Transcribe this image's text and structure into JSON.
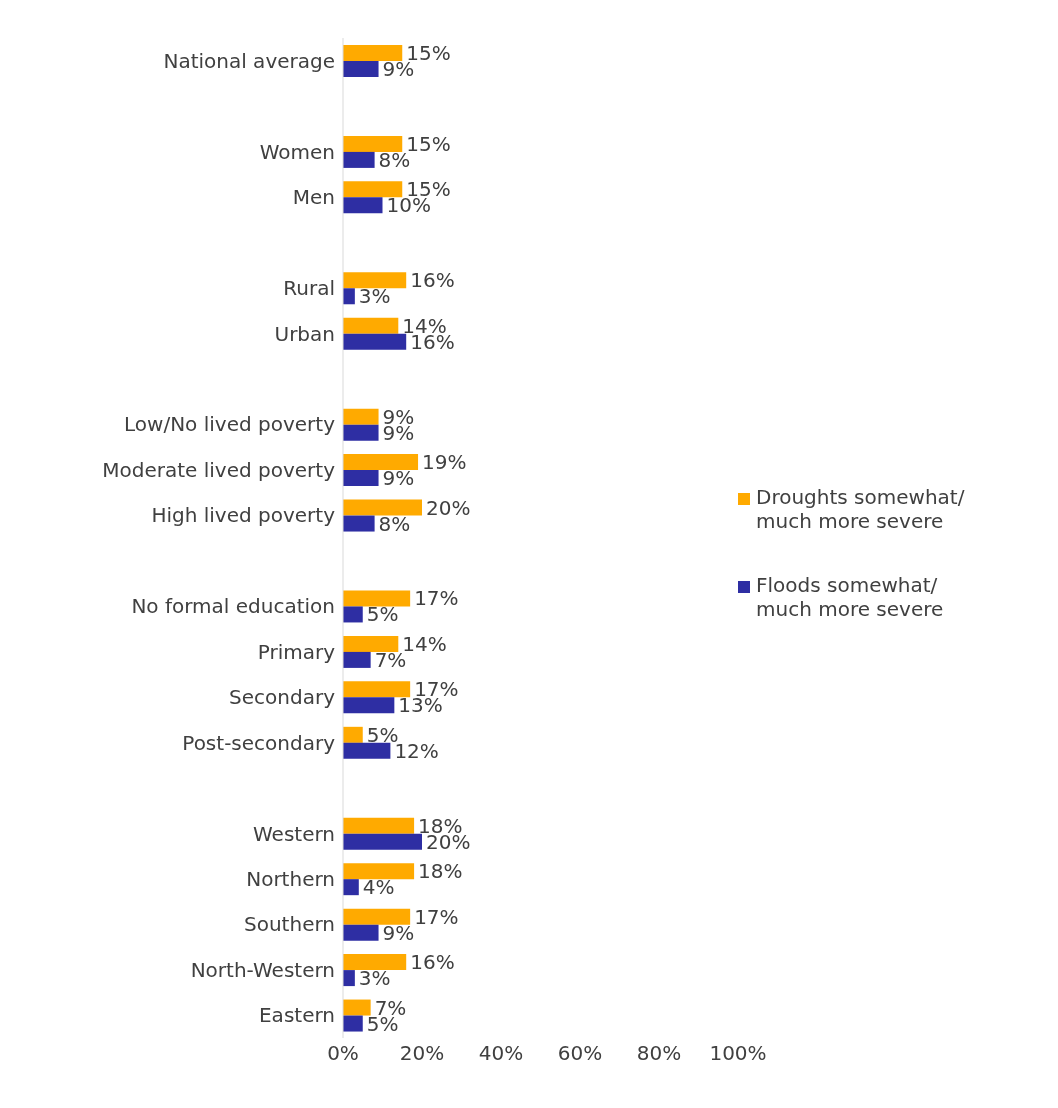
{
  "chart_data": {
    "type": "bar",
    "orientation": "horizontal",
    "categories": [
      "National average",
      null,
      "Women",
      "Men",
      null,
      "Rural",
      "Urban",
      null,
      "Low/No lived poverty",
      "Moderate lived poverty",
      "High lived poverty",
      null,
      "No formal education",
      "Primary",
      "Secondary",
      "Post-secondary",
      null,
      "Western",
      "Northern",
      "Southern",
      "North-Western",
      "Eastern"
    ],
    "series": [
      {
        "name": "Droughts somewhat/ much more severe",
        "color": "#ffaa00",
        "values": [
          15,
          null,
          15,
          15,
          null,
          16,
          14,
          null,
          9,
          19,
          20,
          null,
          17,
          14,
          17,
          5,
          null,
          18,
          18,
          17,
          16,
          7
        ],
        "value_labels": [
          "15%",
          null,
          "15%",
          "15%",
          null,
          "16%",
          "14%",
          null,
          "9%",
          "19%",
          "20%",
          null,
          "17%",
          "14%",
          "17%",
          "5%",
          null,
          "18%",
          "18%",
          "17%",
          "16%",
          "7%"
        ]
      },
      {
        "name": "Floods somewhat/ much more severe",
        "color": "#2e2ea3",
        "values": [
          9,
          null,
          8,
          10,
          null,
          3,
          16,
          null,
          9,
          9,
          8,
          null,
          5,
          7,
          13,
          12,
          null,
          20,
          4,
          9,
          3,
          5
        ],
        "value_labels": [
          "9%",
          null,
          "8%",
          "10%",
          null,
          "3%",
          "16%",
          null,
          "9%",
          "9%",
          "8%",
          null,
          "5%",
          "7%",
          "13%",
          "12%",
          null,
          "20%",
          "4%",
          "9%",
          "3%",
          "5%"
        ]
      }
    ],
    "xlim": [
      0,
      100
    ],
    "xticks": [
      {
        "value": 0,
        "label": "0%"
      },
      {
        "value": 20,
        "label": "20%"
      },
      {
        "value": 40,
        "label": "40%"
      },
      {
        "value": 60,
        "label": "60%"
      },
      {
        "value": 80,
        "label": "80%"
      },
      {
        "value": 100,
        "label": "100%"
      }
    ],
    "legend": "right",
    "grid": false
  }
}
